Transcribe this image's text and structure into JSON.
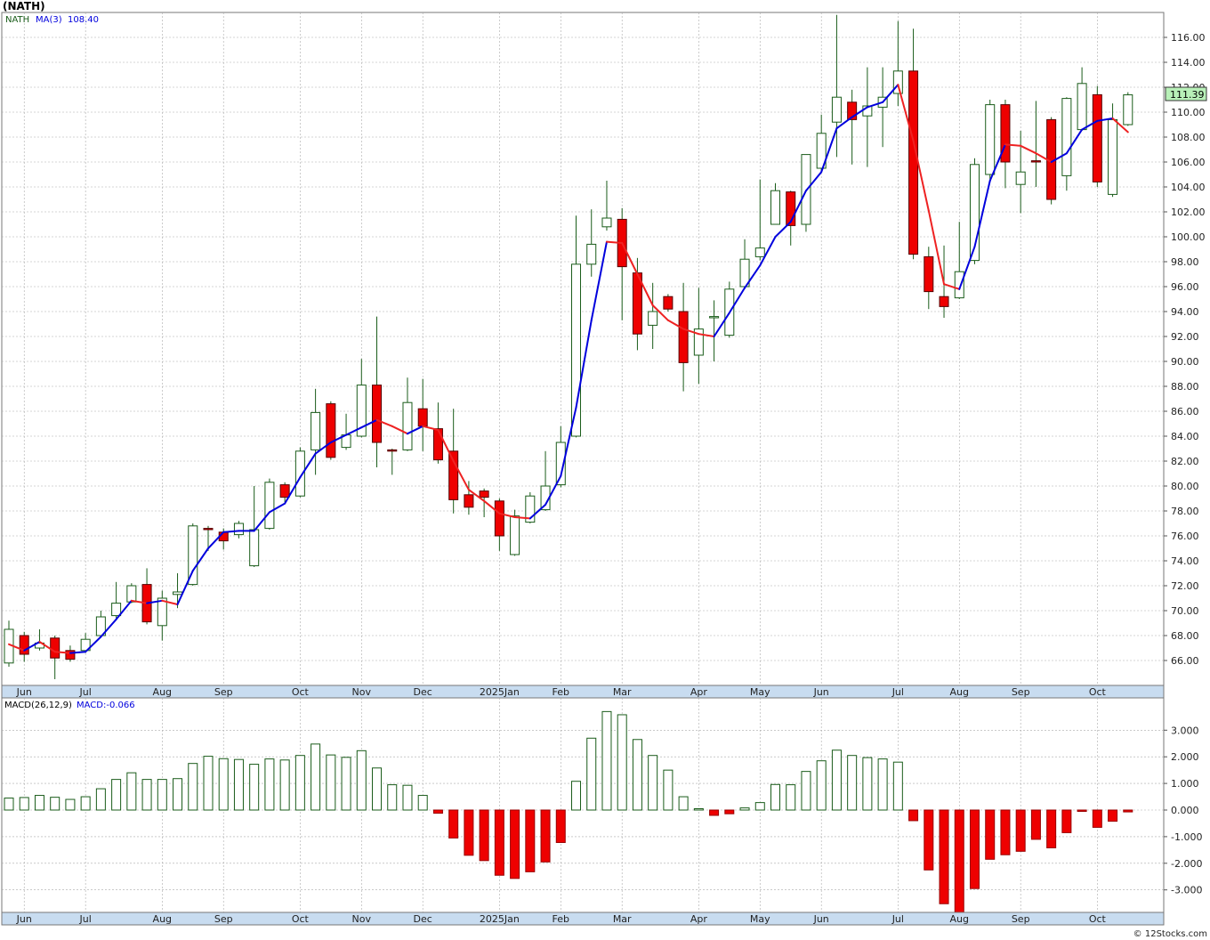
{
  "header": {
    "title": "(NATH)",
    "legend_symbol": "NATH",
    "ma_label": "MA(3)",
    "ma_value": "108.40",
    "last_price_label": "111.39"
  },
  "macd_panel": {
    "label": "MACD(26,12,9)",
    "value_label": "MACD:-0.066"
  },
  "footer": {
    "credit": "© 12Stocks.com"
  },
  "colors": {
    "up_candle": "#1a5c1a",
    "down_candle": "#ee0000",
    "ma_rising": "#0000dd",
    "ma_falling": "#ee2222",
    "axis_band": "#c8dcf0",
    "grid": "#aaaaaa",
    "price_tag_bg": "#b8f0b8"
  },
  "chart_data": [
    {
      "type": "candlestick",
      "title": "(NATH)",
      "period": "weekly",
      "x_labels": [
        {
          "index": 1,
          "label": "Jun"
        },
        {
          "index": 5,
          "label": "Jul"
        },
        {
          "index": 10,
          "label": "Aug"
        },
        {
          "index": 14,
          "label": "Sep"
        },
        {
          "index": 19,
          "label": "Oct"
        },
        {
          "index": 23,
          "label": "Nov"
        },
        {
          "index": 27,
          "label": "Dec"
        },
        {
          "index": 32,
          "label": "2025Jan"
        },
        {
          "index": 36,
          "label": "Feb"
        },
        {
          "index": 40,
          "label": "Mar"
        },
        {
          "index": 45,
          "label": "Apr"
        },
        {
          "index": 49,
          "label": "May"
        },
        {
          "index": 53,
          "label": "Jun"
        },
        {
          "index": 58,
          "label": "Jul"
        },
        {
          "index": 62,
          "label": "Aug"
        },
        {
          "index": 66,
          "label": "Sep"
        },
        {
          "index": 71,
          "label": "Oct"
        }
      ],
      "ylim": [
        64,
        118
      ],
      "y_ticks": [
        66,
        68,
        70,
        72,
        74,
        76,
        78,
        80,
        82,
        84,
        86,
        88,
        90,
        92,
        94,
        96,
        98,
        100,
        102,
        104,
        106,
        108,
        110,
        112,
        114,
        116
      ],
      "y_tick_labels": [
        "66.00",
        "68.00",
        "70.00",
        "72.00",
        "74.00",
        "76.00",
        "78.00",
        "80.00",
        "82.00",
        "84.00",
        "86.00",
        "88.00",
        "90.00",
        "92.00",
        "94.00",
        "96.00",
        "98.00",
        "100.00",
        "102.00",
        "104.00",
        "106.00",
        "108.00",
        "110.00",
        "112.00",
        "114.00",
        "116.00"
      ],
      "ohlc": [
        [
          65.8,
          69.2,
          65.5,
          68.5
        ],
        [
          68.0,
          68.3,
          65.9,
          66.5
        ],
        [
          67.0,
          68.5,
          66.8,
          67.4
        ],
        [
          67.8,
          68.0,
          64.5,
          66.2
        ],
        [
          66.8,
          67.2,
          65.9,
          66.1
        ],
        [
          66.8,
          68.2,
          66.6,
          67.7
        ],
        [
          68.0,
          70.0,
          67.9,
          69.5
        ],
        [
          69.6,
          72.3,
          69.4,
          70.6
        ],
        [
          70.7,
          72.2,
          70.6,
          72.0
        ],
        [
          72.1,
          73.4,
          68.9,
          69.1
        ],
        [
          68.8,
          71.6,
          67.6,
          71.0
        ],
        [
          71.3,
          73.0,
          70.2,
          71.5
        ],
        [
          72.1,
          77.0,
          72.0,
          76.8
        ],
        [
          76.6,
          76.8,
          74.8,
          76.5
        ],
        [
          76.3,
          76.6,
          74.9,
          75.6
        ],
        [
          76.1,
          77.2,
          75.8,
          77.0
        ],
        [
          73.6,
          80.0,
          73.5,
          76.5
        ],
        [
          76.6,
          80.6,
          76.5,
          80.3
        ],
        [
          80.1,
          80.3,
          78.7,
          79.1
        ],
        [
          79.2,
          83.1,
          79.1,
          82.8
        ],
        [
          82.9,
          87.8,
          80.9,
          85.9
        ],
        [
          86.6,
          86.8,
          82.1,
          82.3
        ],
        [
          83.1,
          85.8,
          82.9,
          84.1
        ],
        [
          84.0,
          90.2,
          83.9,
          88.1
        ],
        [
          88.1,
          93.6,
          81.5,
          83.5
        ],
        [
          82.9,
          83.0,
          80.9,
          82.8
        ],
        [
          82.9,
          88.7,
          82.8,
          86.7
        ],
        [
          86.2,
          88.6,
          82.8,
          84.8
        ],
        [
          84.6,
          86.7,
          81.8,
          82.1
        ],
        [
          82.8,
          86.2,
          77.8,
          78.9
        ],
        [
          79.3,
          80.4,
          77.7,
          78.3
        ],
        [
          79.6,
          79.8,
          77.5,
          79.1
        ],
        [
          78.8,
          79.0,
          74.8,
          76.0
        ],
        [
          74.5,
          78.1,
          74.4,
          77.6
        ],
        [
          77.1,
          79.5,
          77.0,
          79.2
        ],
        [
          78.1,
          82.8,
          78.0,
          80.0
        ],
        [
          80.1,
          84.8,
          79.9,
          83.5
        ],
        [
          84.0,
          101.7,
          83.9,
          97.8
        ],
        [
          97.8,
          102.2,
          96.8,
          99.4
        ],
        [
          100.8,
          104.5,
          100.5,
          101.5
        ],
        [
          101.4,
          102.3,
          93.3,
          97.6
        ],
        [
          97.1,
          98.3,
          90.9,
          92.2
        ],
        [
          92.9,
          96.3,
          91.0,
          94.0
        ],
        [
          95.2,
          95.4,
          94.0,
          94.2
        ],
        [
          94.0,
          96.3,
          87.6,
          89.9
        ],
        [
          90.5,
          95.9,
          88.2,
          92.6
        ],
        [
          93.5,
          94.9,
          90.0,
          93.6
        ],
        [
          92.1,
          96.4,
          91.9,
          95.8
        ],
        [
          96.0,
          99.8,
          95.8,
          98.2
        ],
        [
          98.4,
          104.6,
          98.1,
          99.1
        ],
        [
          101.0,
          104.3,
          101.0,
          103.7
        ],
        [
          103.6,
          103.7,
          99.3,
          100.9
        ],
        [
          101.0,
          106.5,
          100.4,
          106.6
        ],
        [
          105.5,
          109.8,
          105.2,
          108.3
        ],
        [
          109.2,
          117.8,
          106.4,
          111.2
        ],
        [
          110.8,
          111.8,
          105.8,
          109.4
        ],
        [
          109.7,
          113.6,
          105.6,
          110.5
        ],
        [
          110.4,
          113.6,
          107.2,
          111.2
        ],
        [
          111.5,
          117.3,
          110.5,
          113.3
        ],
        [
          113.3,
          116.7,
          98.2,
          98.6
        ],
        [
          98.4,
          99.2,
          94.2,
          95.6
        ],
        [
          95.2,
          99.3,
          93.5,
          94.4
        ],
        [
          95.1,
          101.2,
          95.0,
          97.2
        ],
        [
          98.1,
          106.3,
          97.8,
          105.8
        ],
        [
          105.0,
          111.0,
          104.6,
          110.6
        ],
        [
          110.6,
          111.0,
          103.9,
          106.0
        ],
        [
          104.2,
          108.5,
          101.9,
          105.2
        ],
        [
          106.1,
          110.9,
          104.0,
          106.0
        ],
        [
          109.4,
          109.6,
          102.6,
          103.0
        ],
        [
          104.9,
          111.2,
          103.7,
          111.1
        ],
        [
          108.6,
          113.6,
          108.5,
          112.3
        ],
        [
          111.4,
          112.1,
          104.0,
          104.4
        ],
        [
          103.4,
          110.7,
          103.2,
          109.4
        ],
        [
          109.0,
          111.6,
          108.9,
          111.39
        ]
      ],
      "ma_series": {
        "name": "MA(3)",
        "last_value": 108.4,
        "values": [
          67.3,
          66.8,
          67.5,
          66.7,
          66.6,
          66.7,
          67.9,
          69.3,
          70.8,
          70.6,
          70.8,
          70.5,
          73.2,
          75.0,
          76.3,
          76.4,
          76.4,
          77.9,
          78.6,
          80.7,
          82.6,
          83.5,
          84.1,
          84.7,
          85.3,
          84.8,
          84.2,
          84.8,
          84.5,
          82.0,
          79.7,
          78.8,
          77.8,
          77.5,
          77.4,
          78.5,
          80.8,
          86.3,
          93.3,
          99.6,
          99.5,
          97.0,
          94.5,
          93.3,
          92.6,
          92.2,
          92.0,
          93.9,
          95.9,
          97.7,
          100.0,
          101.2,
          103.7,
          105.2,
          108.7,
          109.6,
          110.4,
          110.8,
          112.2,
          107.7,
          102.1,
          96.2,
          95.8,
          99.2,
          104.5,
          107.4,
          107.3,
          106.7,
          106.0,
          106.7,
          108.6,
          109.3,
          109.5,
          108.4
        ]
      }
    },
    {
      "type": "bar",
      "title": "MACD(26,12,9)",
      "ylim": [
        -4.0,
        4.0
      ],
      "y_ticks": [
        -3,
        -2,
        -1,
        0,
        1,
        2,
        3
      ],
      "y_tick_labels": [
        "-3.000",
        "-2.000",
        "-1.000",
        "0.000",
        "1.000",
        "2.000",
        "3.000"
      ],
      "values": [
        0.45,
        0.47,
        0.55,
        0.48,
        0.4,
        0.5,
        0.8,
        1.15,
        1.4,
        1.15,
        1.15,
        1.18,
        1.75,
        2.02,
        1.93,
        1.9,
        1.72,
        1.92,
        1.88,
        2.05,
        2.48,
        2.07,
        1.98,
        2.23,
        1.58,
        0.95,
        0.93,
        0.55,
        -0.12,
        -1.05,
        -1.7,
        -1.9,
        -2.45,
        -2.57,
        -2.32,
        -1.95,
        -1.22,
        1.08,
        2.7,
        3.7,
        3.58,
        2.65,
        2.05,
        1.5,
        0.5,
        0.05,
        -0.2,
        -0.14,
        0.08,
        0.28,
        0.96,
        0.95,
        1.45,
        1.85,
        2.25,
        2.05,
        1.97,
        1.92,
        1.8,
        -0.4,
        -2.25,
        -3.52,
        -3.9,
        -2.95,
        -1.85,
        -1.68,
        -1.55,
        -1.1,
        -1.42,
        -0.85,
        -0.05,
        -0.65,
        -0.42,
        -0.07
      ]
    }
  ]
}
